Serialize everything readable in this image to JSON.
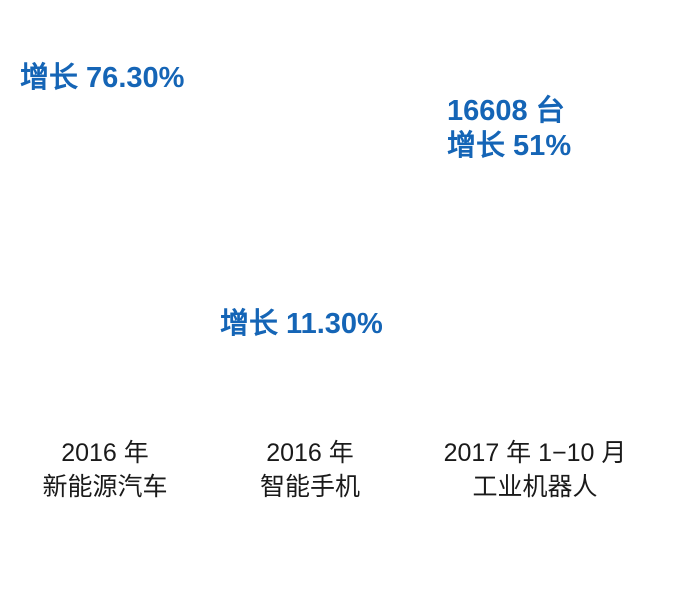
{
  "stats": {
    "nev_growth": "增长 76.30%",
    "phone_growth": "增长 11.30%",
    "robot_units": "16608 台",
    "robot_growth": "增长 51%"
  },
  "categories": {
    "nev": {
      "line1": "2016 年",
      "line2": "新能源汽车"
    },
    "phone": {
      "line1": "2016 年",
      "line2": "智能手机"
    },
    "robot": {
      "line1": "2017 年 1−10 月",
      "line2": "工业机器人"
    }
  },
  "colors": {
    "stat_text": "#1565b6",
    "category_text": "#1a1a1a",
    "background": "#ffffff"
  }
}
